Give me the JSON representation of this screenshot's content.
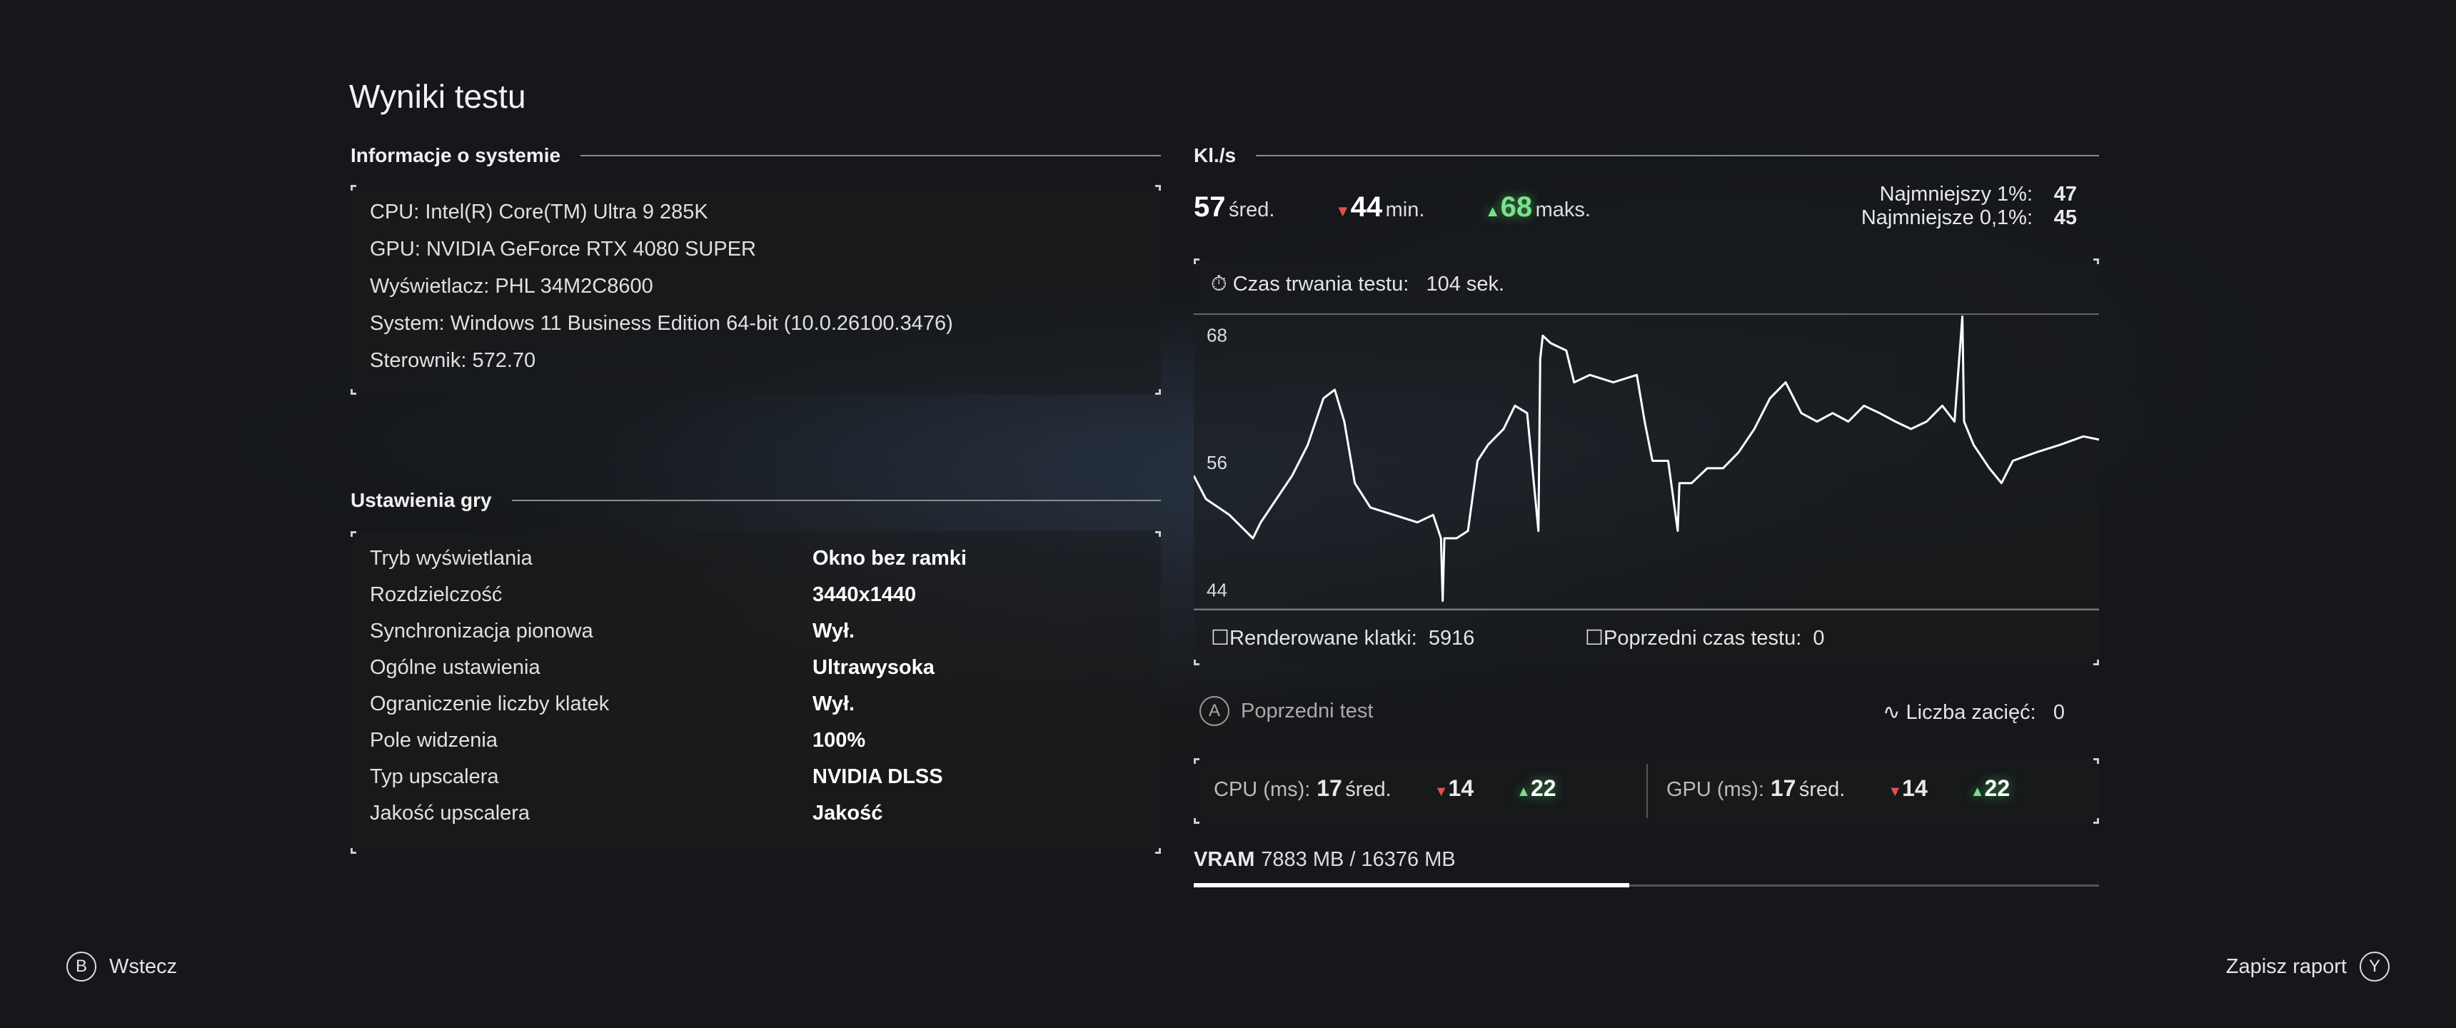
{
  "title": "Wyniki testu",
  "system": {
    "heading": "Informacje o systemie",
    "lines": [
      "CPU: Intel(R) Core(TM) Ultra 9 285K",
      "GPU: NVIDIA GeForce RTX 4080 SUPER",
      "Wyświetlacz: PHL 34M2C8600",
      "System: Windows 11 Business Edition 64-bit (10.0.26100.3476)",
      "Sterownik: 572.70"
    ]
  },
  "settings": {
    "heading": "Ustawienia gry",
    "rows": [
      {
        "label": "Tryb wyświetlania",
        "value": "Okno bez ramki"
      },
      {
        "label": "Rozdzielczość",
        "value": "3440x1440"
      },
      {
        "label": "Synchronizacja pionowa",
        "value": "Wył."
      },
      {
        "label": "Ogólne ustawienia",
        "value": "Ultrawysoka"
      },
      {
        "label": "Ograniczenie liczby klatek",
        "value": "Wył."
      },
      {
        "label": "Pole widzenia",
        "value": "100%"
      },
      {
        "label": "Typ upscalera",
        "value": "NVIDIA DLSS"
      },
      {
        "label": "Jakość upscalera",
        "value": "Jakość"
      }
    ]
  },
  "fps": {
    "heading": "Kl./s",
    "avg": "57",
    "avg_label": "śred.",
    "min": "44",
    "min_label": "min.",
    "max": "68",
    "max_label": "maks.",
    "low1_label": "Najmniejszy 1%:",
    "low1": "47",
    "low01_label": "Najmniejsze 0,1%:",
    "low01": "45",
    "duration_label": "Czas trwania testu:",
    "duration": "104 sek.",
    "frames_label": "Renderowane klatki:",
    "frames": "5916",
    "prev_time_label": "Poprzedni czas testu:",
    "prev_time": "0"
  },
  "chart_data": {
    "type": "line",
    "ylim": [
      42,
      70
    ],
    "xlim": [
      0,
      104
    ],
    "yticks": [
      "68",
      "56",
      "44"
    ],
    "ytick_values": [
      68,
      56,
      44
    ],
    "line_color": "#ffffff",
    "points": [
      [
        0,
        54.7
      ],
      [
        1.4,
        52.5
      ],
      [
        4.1,
        51
      ],
      [
        6.8,
        48.8
      ],
      [
        7.7,
        50.3
      ],
      [
        9.5,
        52.5
      ],
      [
        11.3,
        54.7
      ],
      [
        13.1,
        57.6
      ],
      [
        14.9,
        62
      ],
      [
        16.2,
        62.8
      ],
      [
        17.3,
        59.8
      ],
      [
        18.5,
        54
      ],
      [
        20.3,
        51.7
      ],
      [
        23,
        51
      ],
      [
        25.7,
        50.3
      ],
      [
        27.5,
        51
      ],
      [
        28.4,
        48.8
      ],
      [
        28.6,
        42.9
      ],
      [
        28.8,
        48.8
      ],
      [
        30.2,
        48.8
      ],
      [
        31.5,
        49.5
      ],
      [
        32.6,
        56.1
      ],
      [
        33.8,
        57.6
      ],
      [
        35.6,
        59.1
      ],
      [
        36.9,
        61.3
      ],
      [
        38.3,
        60.6
      ],
      [
        39.6,
        49.5
      ],
      [
        39.8,
        65.7
      ],
      [
        40.1,
        67.9
      ],
      [
        41,
        67.2
      ],
      [
        42.8,
        66.5
      ],
      [
        43.7,
        63.5
      ],
      [
        45.5,
        64.2
      ],
      [
        48.2,
        63.5
      ],
      [
        50.9,
        64.2
      ],
      [
        51.8,
        59.8
      ],
      [
        52.7,
        56.1
      ],
      [
        54.5,
        56.1
      ],
      [
        55.6,
        49.5
      ],
      [
        55.8,
        54
      ],
      [
        57.2,
        54
      ],
      [
        59,
        55.4
      ],
      [
        60.8,
        55.4
      ],
      [
        62.6,
        56.9
      ],
      [
        64.4,
        59.1
      ],
      [
        66.2,
        62
      ],
      [
        68,
        63.5
      ],
      [
        69.8,
        60.6
      ],
      [
        71.6,
        59.8
      ],
      [
        73.4,
        60.6
      ],
      [
        75.2,
        59.8
      ],
      [
        77,
        61.3
      ],
      [
        78.8,
        60.6
      ],
      [
        80.6,
        59.8
      ],
      [
        82.4,
        59.1
      ],
      [
        84.2,
        59.8
      ],
      [
        86,
        61.3
      ],
      [
        87.4,
        59.8
      ],
      [
        88.3,
        69.7
      ],
      [
        88.5,
        59.8
      ],
      [
        89.6,
        57.6
      ],
      [
        91.4,
        55.4
      ],
      [
        92.8,
        54
      ],
      [
        94.1,
        56.1
      ],
      [
        96.8,
        56.9
      ],
      [
        99.5,
        57.6
      ],
      [
        102.2,
        58.4
      ],
      [
        104,
        58.1
      ]
    ]
  },
  "previous_test": {
    "button_glyph": "A",
    "label": "Poprzedni test"
  },
  "stutter": {
    "label": "Liczba zacięć:",
    "value": "0"
  },
  "cpu": {
    "label": "CPU (ms):",
    "avg": "17",
    "avg_label": "śred.",
    "min": "14",
    "max": "22"
  },
  "gpu": {
    "label": "GPU (ms):",
    "avg": "17",
    "avg_label": "śred.",
    "min": "14",
    "max": "22"
  },
  "vram": {
    "label": "VRAM",
    "value": "7883 MB / 16376 MB",
    "fraction": 0.481
  },
  "footer": {
    "back_glyph": "B",
    "back_label": "Wstecz",
    "save_label": "Zapisz raport",
    "save_glyph": "Y"
  },
  "colors": {
    "up": "#7be08f",
    "down": "#e0504a",
    "background": "#15171a"
  }
}
